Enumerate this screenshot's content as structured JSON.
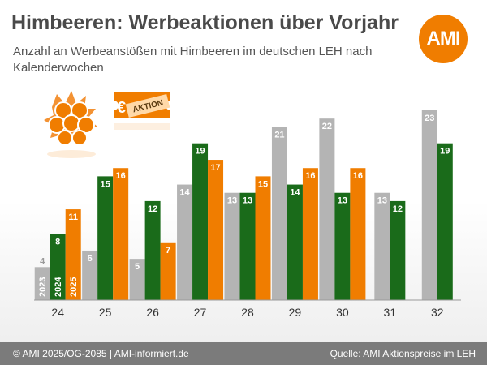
{
  "title": "Himbeeren: Werbeaktionen über Vorjahr",
  "subtitle": "Anzahl an Werbeanstößen mit Himbeeren im deutschen LEH nach Kalenderwochen",
  "logo_text": "AMI",
  "badge_text": "AKTION",
  "badge_symbol": "€",
  "footer": {
    "left": "© AMI 2025/OG-2085 | AMI-informiert.de",
    "right": "Quelle: AMI Aktionspreise im LEH"
  },
  "colors": {
    "series_2023": "#b4b4b4",
    "series_2024": "#1a6b1a",
    "series_2025": "#f07d00",
    "logo": "#f07d00",
    "footer": "#7b7b7b"
  },
  "icons": [
    "raspberry-icon",
    "euro-aktion-ticket-icon"
  ],
  "chart_data": {
    "type": "bar",
    "categories": [
      "24",
      "25",
      "26",
      "27",
      "28",
      "29",
      "30",
      "31",
      "32"
    ],
    "series": [
      {
        "name": "2023",
        "values": [
          4,
          6,
          5,
          14,
          13,
          21,
          22,
          13,
          23
        ]
      },
      {
        "name": "2024",
        "values": [
          8,
          15,
          12,
          19,
          13,
          14,
          13,
          12,
          19
        ]
      },
      {
        "name": "2025",
        "values": [
          11,
          16,
          7,
          17,
          15,
          16,
          16,
          null,
          null
        ]
      }
    ],
    "title": "Himbeeren: Werbeaktionen über Vorjahr",
    "xlabel": "",
    "ylabel": "",
    "ylim": [
      0,
      24
    ],
    "grid": false,
    "legend": "series names written inside the first group's bars"
  }
}
